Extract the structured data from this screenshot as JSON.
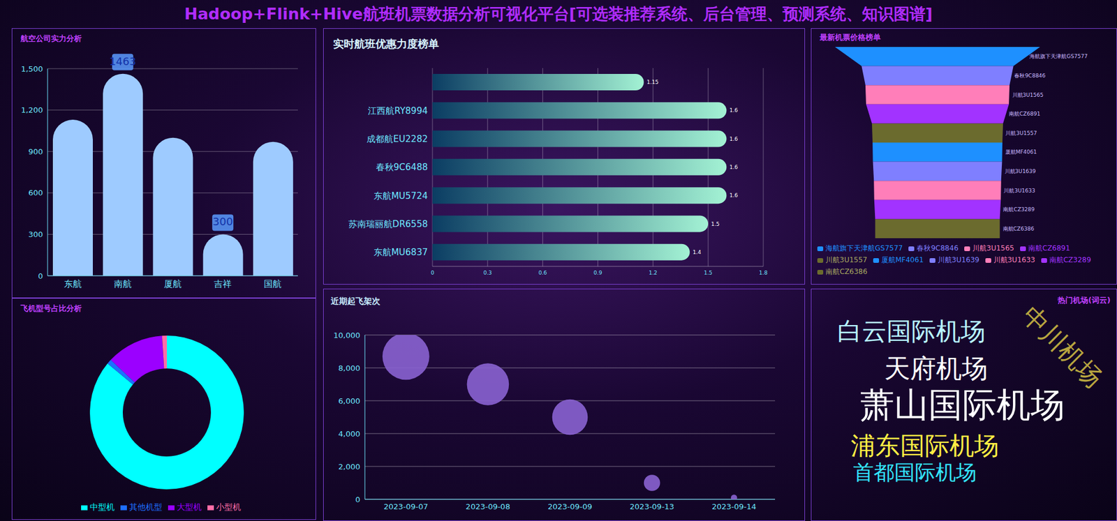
{
  "title": "Hadoop+Flink+Hive航班机票数据分析可视化平台[可选装推荐系统、后台管理、预测系统、知识图谱]",
  "chart_data": [
    {
      "type": "bar",
      "title": "航空公司实力分析",
      "categories": [
        "东航",
        "南航",
        "厦航",
        "吉祥",
        "国航"
      ],
      "values": [
        1130,
        1463,
        1000,
        300,
        970
      ],
      "color": "#9ecbff",
      "ylim": [
        0,
        1500
      ],
      "yticks": [
        0,
        300,
        600,
        900,
        {
          "value": 1200,
          "label": "1,200"
        },
        {
          "value": 1500,
          "label": "1,500"
        }
      ],
      "grid": true,
      "annotations": [
        {
          "x": "南航",
          "y": 1463
        },
        {
          "x": "吉祥",
          "y": 300
        }
      ]
    },
    {
      "type": "pie",
      "title": "飞机型号占比分析",
      "categories": [
        "中型机",
        "其他机型",
        "大型机",
        "小型机"
      ],
      "values": [
        86,
        1,
        12,
        1
      ],
      "colors": [
        "#00ffff",
        "#1e6fff",
        "#9b00ff",
        "#ff6ea8"
      ],
      "legend": "bottom"
    },
    {
      "type": "bar",
      "orientation": "horizontal",
      "title": "实时航班优惠力度榜单",
      "categories": [
        null,
        "江西航RY8994",
        "成都航EU2282",
        "春秋9C6488",
        "东航MU5724",
        "苏南瑞丽航DR6558",
        "东航MU6837"
      ],
      "values": [
        1.15,
        1.6,
        1.6,
        1.6,
        1.6,
        1.5,
        1.4
      ],
      "color": "#a3f2d4",
      "xlim": [
        0,
        1.8
      ],
      "xticks": [
        0,
        0.3,
        0.6,
        0.9,
        1.2,
        1.5,
        1.8
      ],
      "grid": true,
      "data_labels": true
    },
    {
      "type": "funnel",
      "title": "最新机票价格榜单",
      "categories": [
        "海航旗下天津航GS7577",
        "春秋9C8846",
        "川航3U1565",
        "南航CZ6891",
        "川航3U1557",
        "厦航MF4061",
        "川航3U1639",
        "川航3U1633",
        "南航CZ3289",
        "南航CZ6386"
      ],
      "values": [
        1580,
        1170,
        1110,
        1100,
        1010,
        1000,
        995,
        980,
        975,
        960
      ],
      "colors": [
        "#1e90ff",
        "#7f7fff",
        "#ff7eb9",
        "#a233ff",
        "#6b6b2e",
        "#1e90ff",
        "#7f7fff",
        "#ff7eb9",
        "#a233ff",
        "#6b6b2e"
      ],
      "legend": "bottom"
    },
    {
      "type": "scatter",
      "title": "近期起飞架次",
      "categories": [
        "2023-09-07",
        "2023-09-08",
        "2023-09-09",
        "2023-09-13",
        "2023-09-14"
      ],
      "values": [
        8700,
        7000,
        5000,
        1000,
        100
      ],
      "color": "#8a63d2",
      "ylim": [
        0,
        10000
      ],
      "yticks": [
        0,
        {
          "value": 2000,
          "label": "2,000"
        },
        {
          "value": 4000,
          "label": "4,000"
        },
        {
          "value": 6000,
          "label": "6,000"
        },
        {
          "value": 8000,
          "label": "8,000"
        },
        {
          "value": 10000,
          "label": "10,000"
        }
      ],
      "grid": true
    },
    {
      "type": "wordcloud",
      "title": "热门机场(词云)",
      "words": [
        {
          "text": "白云国际机场",
          "weight": 73,
          "color": "#b8f4ff"
        },
        {
          "text": "天府机场",
          "weight": 76,
          "color": "#ffffff"
        },
        {
          "text": "萧山国际机场",
          "weight": 100,
          "color": "#ffffff"
        },
        {
          "text": "浦东国际机场",
          "weight": 73,
          "color": "#ffee44"
        },
        {
          "text": "首都国际机场",
          "weight": 60,
          "color": "#33e6ff"
        },
        {
          "text": "中川机场",
          "weight": 74,
          "color": "#b8a540"
        }
      ]
    }
  ]
}
